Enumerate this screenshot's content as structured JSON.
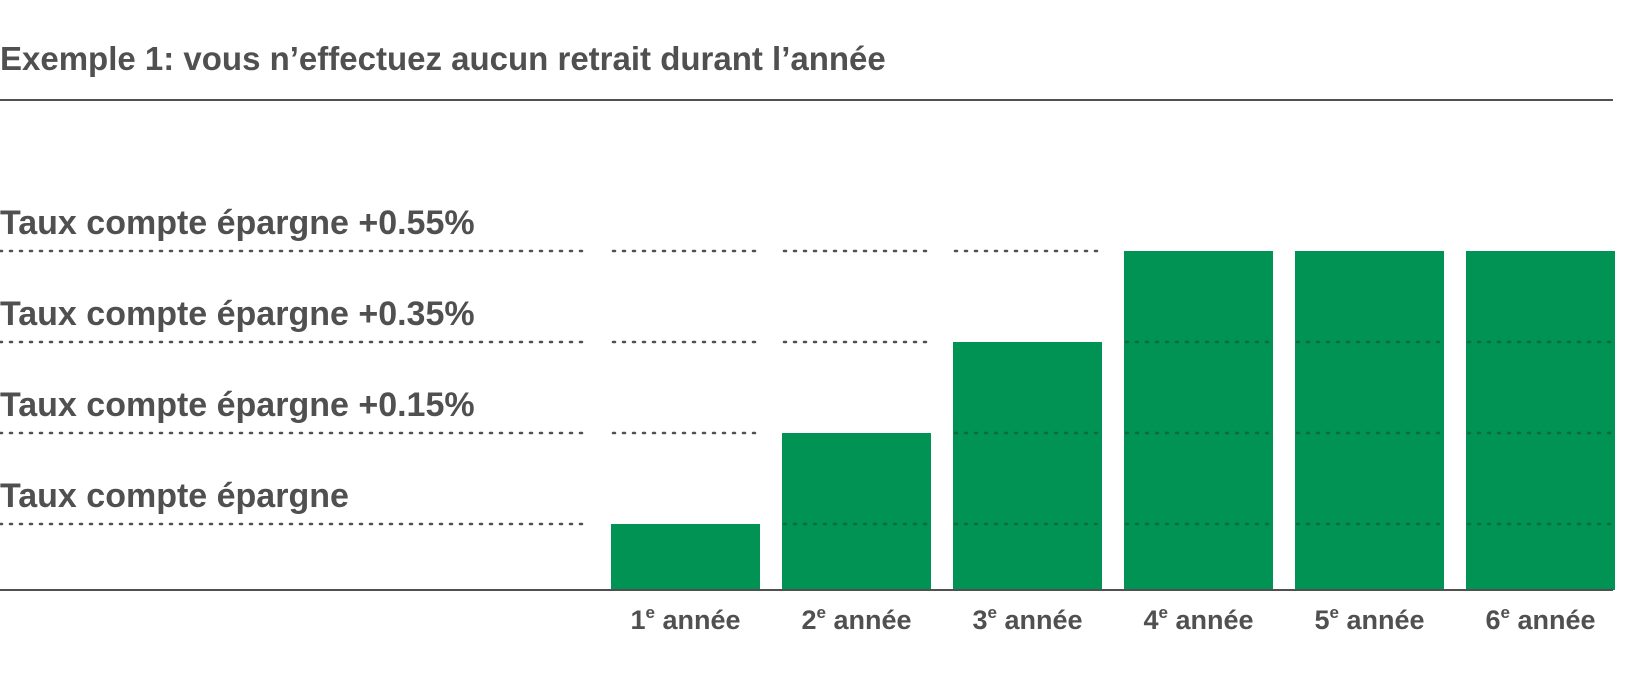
{
  "chart_data": {
    "type": "bar",
    "title": "Exemple 1: vous n’effectuez aucun retrait durant l’année",
    "categories": [
      {
        "num": "1",
        "sup": "e",
        "text": " année"
      },
      {
        "num": "2",
        "sup": "e",
        "text": " année"
      },
      {
        "num": "3",
        "sup": "e",
        "text": " année"
      },
      {
        "num": "4",
        "sup": "e",
        "text": " année"
      },
      {
        "num": "5",
        "sup": "e",
        "text": " année"
      },
      {
        "num": "6",
        "sup": "e",
        "text": " année"
      }
    ],
    "levels": [
      {
        "label": "Taux compte épargne",
        "bonus": 0
      },
      {
        "label": "Taux compte épargne +0.15%",
        "bonus": 0.15
      },
      {
        "label": "Taux compte épargne +0.35%",
        "bonus": 0.35
      },
      {
        "label": "Taux compte épargne +0.55%",
        "bonus": 0.55
      }
    ],
    "values": [
      0,
      0.15,
      0.35,
      0.55,
      0.55,
      0.55
    ],
    "unit": "% above savings account rate",
    "bar_color": "#009353",
    "text_color": "#505050",
    "gridline_style": "dotted",
    "grid": true
  }
}
